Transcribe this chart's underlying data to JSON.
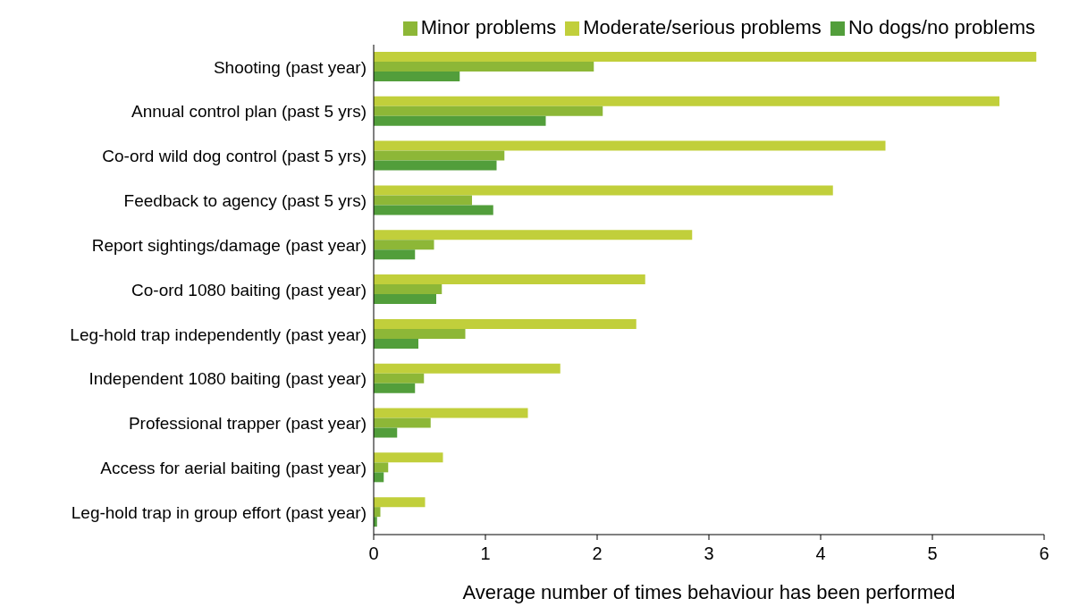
{
  "chart_data": {
    "type": "bar",
    "orientation": "horizontal",
    "xlabel": "Average number of times behaviour has been performed",
    "categories": [
      "Shooting (past year)",
      "Annual control plan (past 5 yrs)",
      "Co-ord wild dog control (past 5 yrs)",
      "Feedback to agency (past 5 yrs)",
      "Report sightings/damage (past year)",
      "Co-ord 1080 baiting (past year)",
      "Leg-hold trap independently (past year)",
      "Independent 1080 baiting (past year)",
      "Professional trapper (past year)",
      "Access for aerial baiting (past year)",
      "Leg-hold trap in group effort (past year)"
    ],
    "series": [
      {
        "name": "Moderate/serious problems",
        "color": "#c1cf3b",
        "values": [
          5.93,
          5.6,
          4.58,
          4.11,
          2.85,
          2.43,
          2.35,
          1.67,
          1.38,
          0.62,
          0.46
        ]
      },
      {
        "name": "Minor problems",
        "color": "#8db737",
        "values": [
          1.97,
          2.05,
          1.17,
          0.88,
          0.54,
          0.61,
          0.82,
          0.45,
          0.51,
          0.13,
          0.06
        ]
      },
      {
        "name": "No dogs/no problems",
        "color": "#529e3b",
        "values": [
          0.77,
          1.54,
          1.1,
          1.07,
          0.37,
          0.56,
          0.4,
          0.37,
          0.21,
          0.09,
          0.03
        ]
      }
    ],
    "xlim": [
      0,
      6
    ],
    "xticks": [
      0,
      1,
      2,
      3,
      4,
      5,
      6
    ],
    "grid": false,
    "legend": "top right"
  }
}
